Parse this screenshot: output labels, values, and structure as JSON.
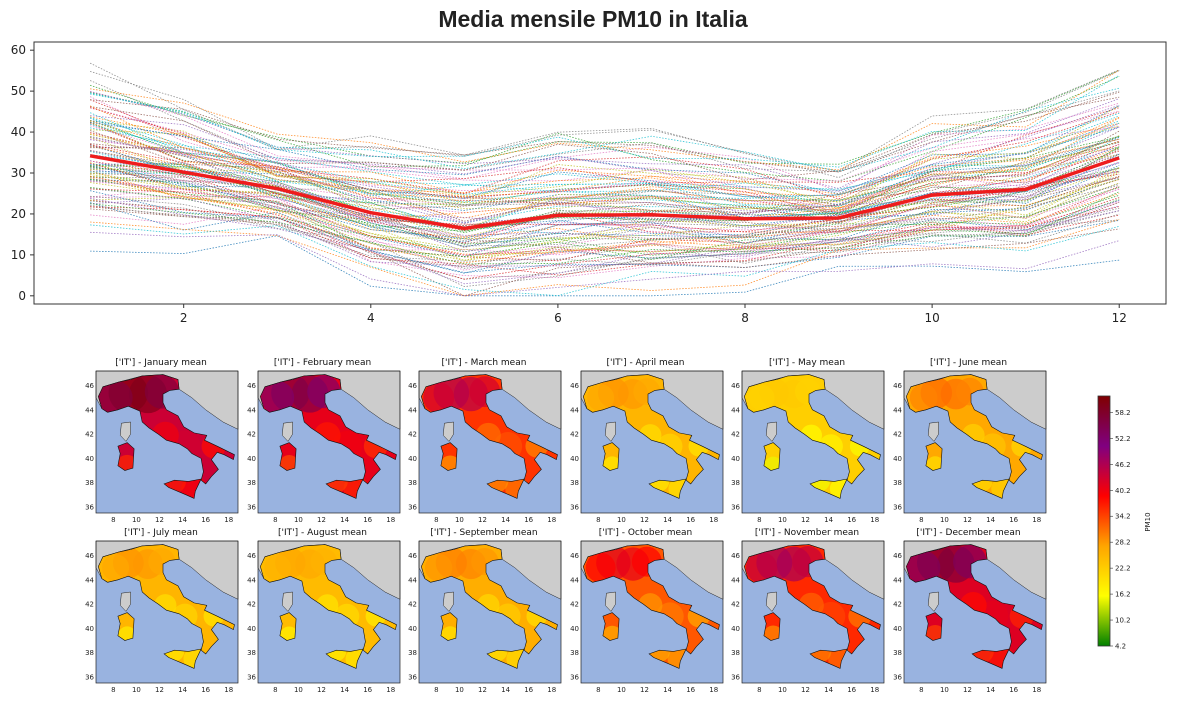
{
  "page": {
    "title": "Media mensile PM10 in Italia"
  },
  "chart_data": [
    {
      "type": "line",
      "title": "",
      "xlabel": "",
      "ylabel": "",
      "xlim": [
        0.4,
        12.5
      ],
      "ylim": [
        -2,
        62
      ],
      "x": [
        1,
        2,
        3,
        4,
        5,
        6,
        7,
        8,
        9,
        10,
        11,
        12
      ],
      "x_ticks": [
        2,
        4,
        6,
        8,
        10,
        12
      ],
      "y_ticks": [
        0,
        10,
        20,
        30,
        40,
        50,
        60
      ],
      "grid": false,
      "legend": "none",
      "mean_series": {
        "values": [
          34.2,
          30.2,
          26.2,
          20.3,
          16.5,
          19.7,
          19.8,
          18.8,
          19.0,
          24.6,
          26.0,
          33.7
        ],
        "color": "#ee1c1c"
      },
      "station_series_count": 110,
      "station_series_style": "thin dotted, tab10 colors",
      "station_value_range": [
        0,
        60
      ]
    },
    {
      "type": "heatmap",
      "layout": "2x6 grid of maps of Italy",
      "panels": [
        {
          "title": "['IT'] - January mean",
          "level": 0.78
        },
        {
          "title": "['IT'] - February mean",
          "level": 0.72
        },
        {
          "title": "['IT'] - March mean",
          "level": 0.58
        },
        {
          "title": "['IT'] - April mean",
          "level": 0.34
        },
        {
          "title": "['IT'] - May mean",
          "level": 0.26
        },
        {
          "title": "['IT'] - June mean",
          "level": 0.38
        },
        {
          "title": "['IT'] - July mean",
          "level": 0.34
        },
        {
          "title": "['IT'] - August mean",
          "level": 0.32
        },
        {
          "title": "['IT'] - September mean",
          "level": 0.36
        },
        {
          "title": "['IT'] - October mean",
          "level": 0.52
        },
        {
          "title": "['IT'] - November mean",
          "level": 0.6
        },
        {
          "title": "['IT'] - December mean",
          "level": 0.74
        }
      ],
      "x_ticks": [
        8,
        10,
        12,
        14,
        16,
        18
      ],
      "y_ticks": [
        36,
        38,
        40,
        42,
        44,
        46
      ],
      "xlim": [
        6.5,
        18.8
      ],
      "ylim": [
        35.5,
        47.2
      ],
      "colorbar": {
        "label": "PM10",
        "ticks": [
          "58.2",
          "52.2",
          "46.2",
          "40.2",
          "34.2",
          "28.2",
          "22.2",
          "16.2",
          "10.2",
          "4.2"
        ],
        "range": [
          4.2,
          62
        ],
        "colormap": [
          "#008000",
          "#ffff00",
          "#ffa500",
          "#ff0000",
          "#800080",
          "#800000"
        ]
      }
    }
  ],
  "colors": {
    "mean_line": "#ee1c1c",
    "sea": "#99b3e0",
    "land_outside": "#cccccc",
    "station_palette": [
      "#1f77b4",
      "#ff7f0e",
      "#2ca02c",
      "#d62728",
      "#9467bd",
      "#8c564b",
      "#e377c2",
      "#7f7f7f",
      "#bcbd22",
      "#17becf"
    ]
  }
}
